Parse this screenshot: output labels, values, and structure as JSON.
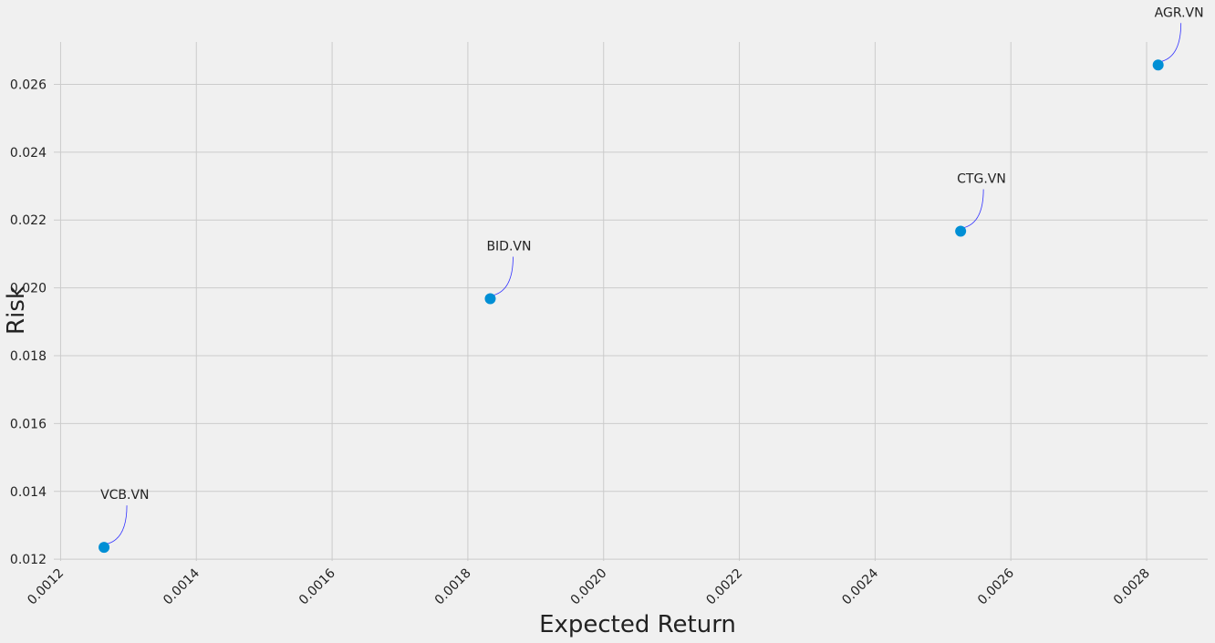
{
  "chart_data": {
    "type": "scatter",
    "title": "",
    "xlabel": "Expected Return",
    "ylabel": "Risk",
    "xlim": [
      0.00119,
      0.00289
    ],
    "ylim": [
      0.01195,
      0.02725
    ],
    "x_ticks": [
      "0.0012",
      "0.0014",
      "0.0016",
      "0.0018",
      "0.0020",
      "0.0022",
      "0.0024",
      "0.0026",
      "0.0028"
    ],
    "y_ticks": [
      "0.012",
      "0.014",
      "0.016",
      "0.018",
      "0.020",
      "0.022",
      "0.024",
      "0.026"
    ],
    "grid": true,
    "colors": {
      "point": "#008fd5",
      "annotation_line": "#3333ff",
      "grid": "#cbcbcb",
      "background": "#f0f0f0"
    },
    "points": [
      {
        "label": "VCB.VN",
        "x": 0.001264,
        "y": 0.01235
      },
      {
        "label": "BID.VN",
        "x": 0.001833,
        "y": 0.01968
      },
      {
        "label": "CTG.VN",
        "x": 0.002526,
        "y": 0.02167
      },
      {
        "label": "AGR.VN",
        "x": 0.002817,
        "y": 0.02657
      }
    ]
  }
}
